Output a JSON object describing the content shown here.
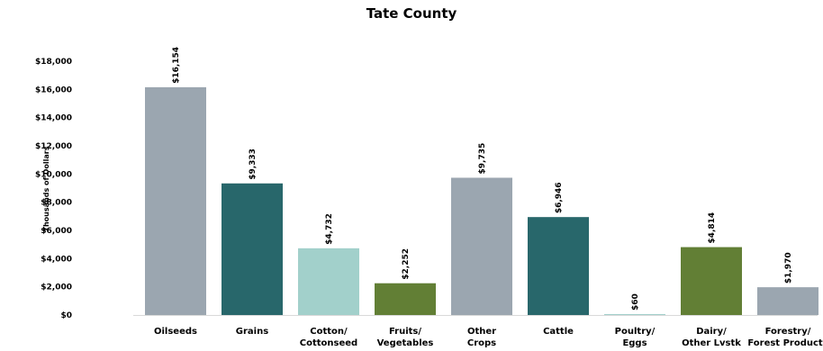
{
  "chart_data": {
    "type": "bar",
    "title": "Tate County",
    "ylabel": "Thousands of Dollars",
    "xlabel": "",
    "ylim": [
      0,
      18000
    ],
    "yticks": [
      "$0",
      "$2,000",
      "$4,000",
      "$6,000",
      "$8,000",
      "$10,000",
      "$12,000",
      "$14,000",
      "$16,000",
      "$18,000"
    ],
    "ytick_values": [
      0,
      2000,
      4000,
      6000,
      8000,
      10000,
      12000,
      14000,
      16000,
      18000
    ],
    "grid": false,
    "categories": [
      [
        "Oilseeds"
      ],
      [
        "Grains"
      ],
      [
        "Cotton/",
        "Cottonseed"
      ],
      [
        "Fruits/",
        "Vegetables"
      ],
      [
        "Other",
        "Crops"
      ],
      [
        "Cattle"
      ],
      [
        "Poultry/",
        "Eggs"
      ],
      [
        "Dairy/",
        "Other Lvstk"
      ],
      [
        "Forestry/",
        "Forest Products"
      ]
    ],
    "values": [
      16154,
      9333,
      4732,
      2252,
      9735,
      6946,
      60,
      4814,
      1970
    ],
    "data_labels": [
      "$16,154",
      "$9,333",
      "$4,732",
      "$2,252",
      "$9,735",
      "$6,946",
      "$60",
      "$4,814",
      "$1,970"
    ],
    "colors": [
      "#9ba6b0",
      "#28676b",
      "#a2d0cb",
      "#627f35",
      "#9ba6b0",
      "#28676b",
      "#a2d0cb",
      "#627f35",
      "#9ba6b0"
    ]
  }
}
